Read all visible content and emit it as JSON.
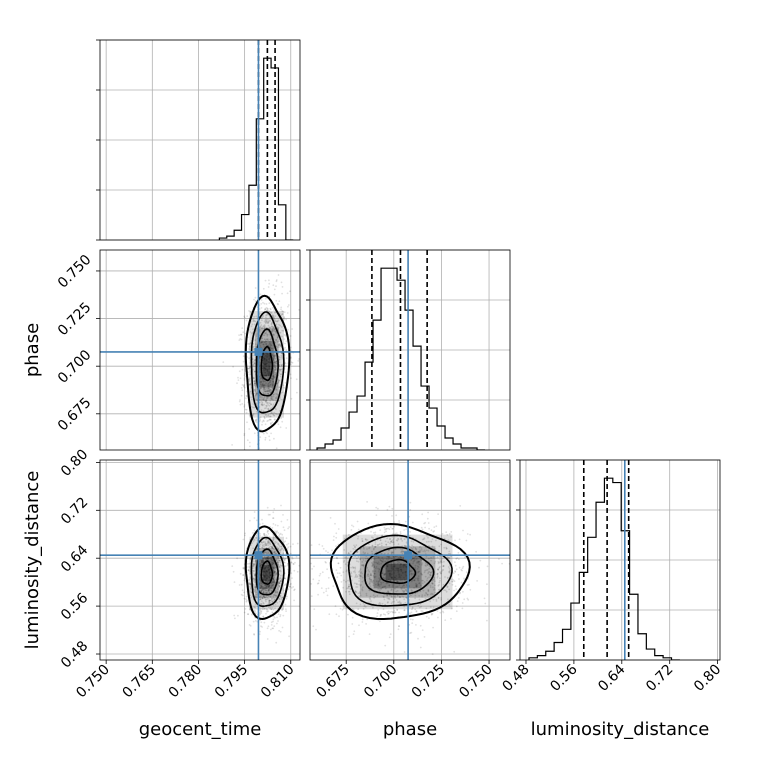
{
  "chart_data": {
    "type": "corner",
    "parameters": [
      "geocent_time",
      "phase",
      "luminosity_distance"
    ],
    "axis_labels": {
      "x": [
        "geocent_time",
        "phase",
        "luminosity_distance"
      ],
      "y": [
        "",
        "phase",
        "luminosity_distance"
      ]
    },
    "ranges": {
      "geocent_time": [
        0.748,
        0.813
      ],
      "phase": [
        0.656,
        0.761
      ],
      "luminosity_distance": [
        0.47,
        0.804
      ]
    },
    "ticks": {
      "geocent_time": [
        0.75,
        0.765,
        0.78,
        0.795,
        0.81
      ],
      "phase": [
        0.675,
        0.7,
        0.725,
        0.75
      ],
      "luminosity_distance": [
        0.48,
        0.56,
        0.64,
        0.72,
        0.8
      ]
    },
    "tick_labels": {
      "geocent_time": [
        "0.750",
        "0.765",
        "0.780",
        "0.795",
        "0.810"
      ],
      "phase": [
        "0.675",
        "0.700",
        "0.725",
        "0.750"
      ],
      "luminosity_distance": [
        "0.48",
        "0.56",
        "0.64",
        "0.72",
        "0.80"
      ]
    },
    "truths": {
      "geocent_time": 0.7995,
      "phase": 0.7075,
      "luminosity_distance": 0.645
    },
    "quantiles": {
      "geocent_time": [
        0.7995,
        0.8024,
        0.8049
      ],
      "phase": [
        0.6885,
        0.7035,
        0.7175
      ],
      "luminosity_distance": [
        0.5765,
        0.6155,
        0.6515
      ]
    },
    "histograms": {
      "geocent_time": {
        "bin_edges": [
          0.7868,
          0.7892,
          0.7916,
          0.794,
          0.7964,
          0.7988,
          0.8012,
          0.8036,
          0.806,
          0.8084,
          0.8108
        ],
        "counts": [
          1,
          2,
          5,
          13,
          28,
          62,
          93,
          88,
          18,
          0
        ]
      },
      "phase": {
        "bin_edges": [
          0.6597,
          0.6639,
          0.6681,
          0.6723,
          0.6765,
          0.6807,
          0.6849,
          0.6891,
          0.6933,
          0.6975,
          0.7017,
          0.7059,
          0.7101,
          0.7143,
          0.7185,
          0.7227,
          0.7269,
          0.7311,
          0.7353,
          0.7395,
          0.7437,
          0.7479
        ],
        "counts": [
          1,
          3,
          5,
          11,
          19,
          27,
          44,
          65,
          91,
          91,
          85,
          70,
          52,
          32,
          21,
          12,
          6,
          3,
          1,
          1,
          0
        ]
      },
      "luminosity_distance": {
        "bin_edges": [
          0.485,
          0.499,
          0.513,
          0.527,
          0.541,
          0.555,
          0.569,
          0.583,
          0.597,
          0.611,
          0.625,
          0.639,
          0.653,
          0.667,
          0.681,
          0.695,
          0.709,
          0.723,
          0.737
        ],
        "counts": [
          1,
          2,
          4,
          8,
          14,
          26,
          40,
          56,
          72,
          83,
          81,
          59,
          30,
          12,
          5,
          2,
          1,
          0
        ]
      }
    },
    "density_2d": {
      "phase_vs_geocent_time": {
        "center": [
          0.8022,
          0.701
        ],
        "spread": [
          0.0035,
          0.0175
        ],
        "corr": 0.1
      },
      "luminosity_distance_vs_geocent_time": {
        "center": [
          0.8022,
          0.615
        ],
        "spread": [
          0.0035,
          0.038
        ],
        "corr": 0.05
      },
      "luminosity_distance_vs_phase": {
        "center": [
          0.702,
          0.617
        ],
        "spread": [
          0.018,
          0.039
        ],
        "corr": 0.0
      }
    },
    "truth_color": "#4682b4",
    "grid": true
  }
}
